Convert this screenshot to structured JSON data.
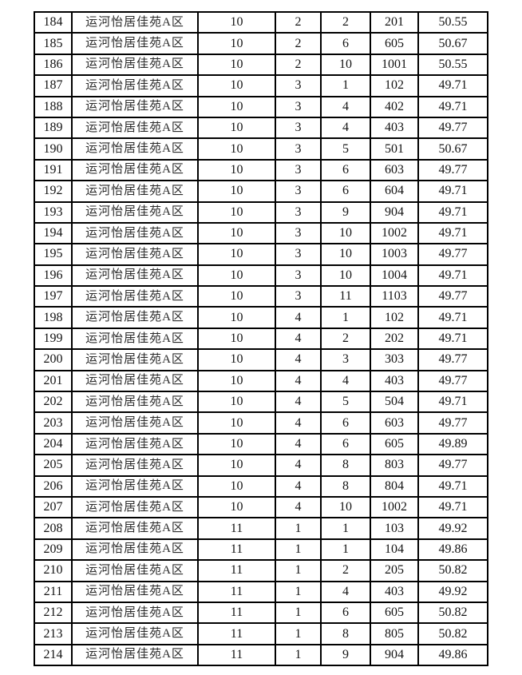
{
  "table": {
    "community_name": "运河怡居佳苑A区",
    "rows": [
      [
        "184",
        "运河怡居佳苑A区",
        "10",
        "2",
        "2",
        "201",
        "50.55"
      ],
      [
        "185",
        "运河怡居佳苑A区",
        "10",
        "2",
        "6",
        "605",
        "50.67"
      ],
      [
        "186",
        "运河怡居佳苑A区",
        "10",
        "2",
        "10",
        "1001",
        "50.55"
      ],
      [
        "187",
        "运河怡居佳苑A区",
        "10",
        "3",
        "1",
        "102",
        "49.71"
      ],
      [
        "188",
        "运河怡居佳苑A区",
        "10",
        "3",
        "4",
        "402",
        "49.71"
      ],
      [
        "189",
        "运河怡居佳苑A区",
        "10",
        "3",
        "4",
        "403",
        "49.77"
      ],
      [
        "190",
        "运河怡居佳苑A区",
        "10",
        "3",
        "5",
        "501",
        "50.67"
      ],
      [
        "191",
        "运河怡居佳苑A区",
        "10",
        "3",
        "6",
        "603",
        "49.77"
      ],
      [
        "192",
        "运河怡居佳苑A区",
        "10",
        "3",
        "6",
        "604",
        "49.71"
      ],
      [
        "193",
        "运河怡居佳苑A区",
        "10",
        "3",
        "9",
        "904",
        "49.71"
      ],
      [
        "194",
        "运河怡居佳苑A区",
        "10",
        "3",
        "10",
        "1002",
        "49.71"
      ],
      [
        "195",
        "运河怡居佳苑A区",
        "10",
        "3",
        "10",
        "1003",
        "49.77"
      ],
      [
        "196",
        "运河怡居佳苑A区",
        "10",
        "3",
        "10",
        "1004",
        "49.71"
      ],
      [
        "197",
        "运河怡居佳苑A区",
        "10",
        "3",
        "11",
        "1103",
        "49.77"
      ],
      [
        "198",
        "运河怡居佳苑A区",
        "10",
        "4",
        "1",
        "102",
        "49.71"
      ],
      [
        "199",
        "运河怡居佳苑A区",
        "10",
        "4",
        "2",
        "202",
        "49.71"
      ],
      [
        "200",
        "运河怡居佳苑A区",
        "10",
        "4",
        "3",
        "303",
        "49.77"
      ],
      [
        "201",
        "运河怡居佳苑A区",
        "10",
        "4",
        "4",
        "403",
        "49.77"
      ],
      [
        "202",
        "运河怡居佳苑A区",
        "10",
        "4",
        "5",
        "504",
        "49.71"
      ],
      [
        "203",
        "运河怡居佳苑A区",
        "10",
        "4",
        "6",
        "603",
        "49.77"
      ],
      [
        "204",
        "运河怡居佳苑A区",
        "10",
        "4",
        "6",
        "605",
        "49.89"
      ],
      [
        "205",
        "运河怡居佳苑A区",
        "10",
        "4",
        "8",
        "803",
        "49.77"
      ],
      [
        "206",
        "运河怡居佳苑A区",
        "10",
        "4",
        "8",
        "804",
        "49.71"
      ],
      [
        "207",
        "运河怡居佳苑A区",
        "10",
        "4",
        "10",
        "1002",
        "49.71"
      ],
      [
        "208",
        "运河怡居佳苑A区",
        "11",
        "1",
        "1",
        "103",
        "49.92"
      ],
      [
        "209",
        "运河怡居佳苑A区",
        "11",
        "1",
        "1",
        "104",
        "49.86"
      ],
      [
        "210",
        "运河怡居佳苑A区",
        "11",
        "1",
        "2",
        "205",
        "50.82"
      ],
      [
        "211",
        "运河怡居佳苑A区",
        "11",
        "1",
        "4",
        "403",
        "49.92"
      ],
      [
        "212",
        "运河怡居佳苑A区",
        "11",
        "1",
        "6",
        "605",
        "50.82"
      ],
      [
        "213",
        "运河怡居佳苑A区",
        "11",
        "1",
        "8",
        "805",
        "50.82"
      ],
      [
        "214",
        "运河怡居佳苑A区",
        "11",
        "1",
        "9",
        "904",
        "49.86"
      ]
    ],
    "border_color": "#000000",
    "text_color": "#141414"
  }
}
